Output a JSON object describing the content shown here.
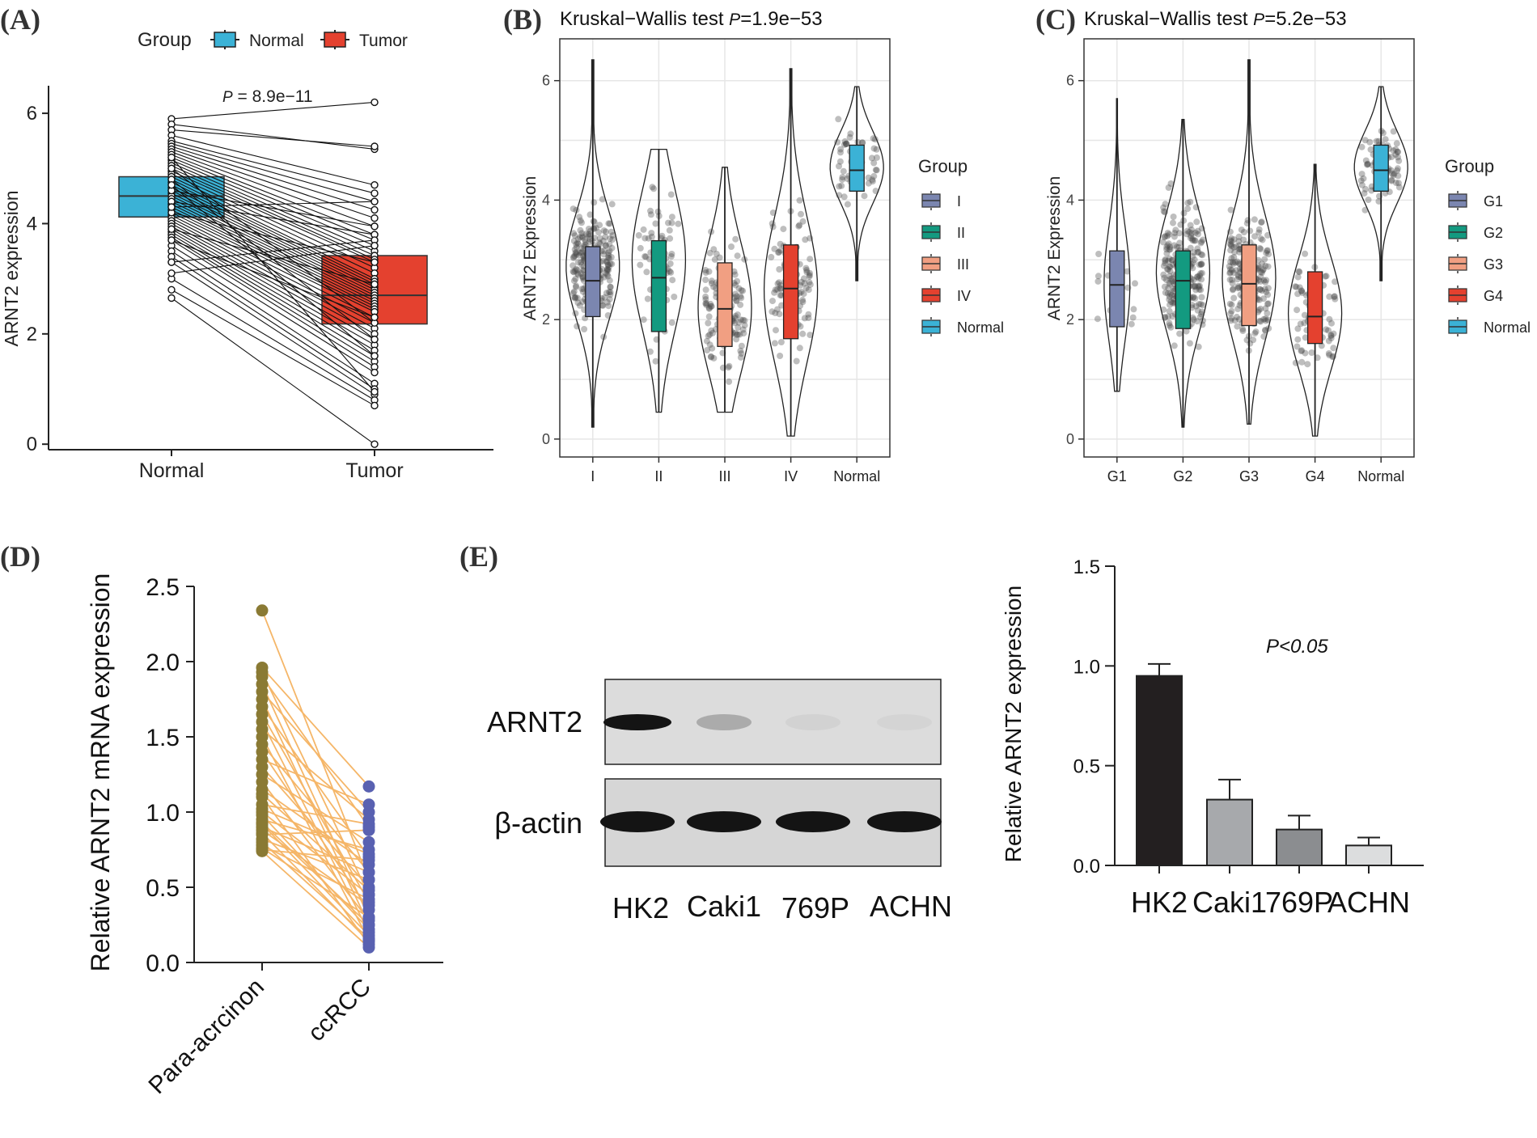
{
  "chart_data": [
    {
      "id": "A",
      "type": "box-paired",
      "panel_label": "(A)",
      "legend_title": "Group",
      "legend": [
        "Normal",
        "Tumor"
      ],
      "colors": {
        "Normal": "#3bb2d6",
        "Tumor": "#e4412f"
      },
      "p_prefix": "P",
      "p_value": " = 8.9e−11",
      "ylabel": "ARNT2 expression",
      "categories": [
        "Normal",
        "Tumor"
      ],
      "yticks": [
        "0",
        "2",
        "4",
        "6"
      ],
      "ylim": [
        -0.1,
        6.5
      ],
      "boxes": [
        {
          "group": "Normal",
          "q1": 4.12,
          "median": 4.5,
          "q3": 4.85
        },
        {
          "group": "Tumor",
          "q1": 2.18,
          "median": 2.7,
          "q3": 3.42
        }
      ],
      "pairs": [
        [
          5.9,
          6.2
        ],
        [
          5.8,
          5.35
        ],
        [
          5.7,
          5.4
        ],
        [
          5.6,
          4.7
        ],
        [
          5.5,
          4.55
        ],
        [
          5.45,
          4.4
        ],
        [
          5.4,
          4.25
        ],
        [
          5.35,
          4.1
        ],
        [
          5.3,
          3.95
        ],
        [
          5.25,
          3.8
        ],
        [
          5.2,
          3.7
        ],
        [
          5.15,
          3.6
        ],
        [
          5.1,
          3.5
        ],
        [
          5.05,
          3.42
        ],
        [
          5.0,
          3.35
        ],
        [
          4.95,
          3.3
        ],
        [
          4.9,
          3.2
        ],
        [
          4.85,
          3.1
        ],
        [
          4.8,
          3.0
        ],
        [
          4.75,
          2.95
        ],
        [
          4.7,
          2.9
        ],
        [
          4.65,
          2.85
        ],
        [
          4.6,
          2.8
        ],
        [
          4.55,
          2.75
        ],
        [
          4.5,
          2.7
        ],
        [
          4.45,
          2.65
        ],
        [
          4.4,
          2.6
        ],
        [
          4.35,
          2.55
        ],
        [
          4.3,
          2.5
        ],
        [
          4.25,
          2.45
        ],
        [
          4.2,
          2.4
        ],
        [
          4.15,
          2.3
        ],
        [
          4.1,
          2.2
        ],
        [
          4.05,
          2.1
        ],
        [
          4.0,
          2.0
        ],
        [
          3.95,
          1.9
        ],
        [
          3.9,
          1.8
        ],
        [
          3.85,
          1.7
        ],
        [
          3.8,
          1.6
        ],
        [
          3.75,
          1.5
        ],
        [
          3.7,
          1.4
        ],
        [
          3.6,
          1.3
        ],
        [
          3.5,
          1.1
        ],
        [
          3.4,
          1.0
        ],
        [
          3.3,
          0.9
        ],
        [
          3.0,
          0.8
        ],
        [
          2.8,
          0.7
        ],
        [
          2.65,
          0.0
        ],
        [
          4.6,
          3.95
        ],
        [
          4.4,
          3.8
        ],
        [
          3.3,
          3.7
        ],
        [
          3.1,
          3.6
        ],
        [
          4.8,
          1.9
        ],
        [
          5.0,
          2.2
        ],
        [
          4.2,
          3.3
        ],
        [
          3.9,
          2.9
        ],
        [
          4.7,
          1.6
        ],
        [
          5.2,
          0.95
        ],
        [
          4.3,
          4.4
        ],
        [
          3.7,
          2.3
        ]
      ]
    },
    {
      "id": "B",
      "type": "violin-box",
      "panel_label": "(B)",
      "title_prefix": "Kruskal−Wallis test ",
      "p_prefix": "P",
      "p_value": "=1.9e−53",
      "ylabel": "ARNT2 Expression",
      "categories": [
        "I",
        "II",
        "III",
        "IV",
        "Normal"
      ],
      "yticks": [
        "0",
        "2",
        "4",
        "6"
      ],
      "ylim": [
        -0.3,
        6.7
      ],
      "legend_title": "Group",
      "legend": [
        "I",
        "II",
        "III",
        "IV",
        "Normal"
      ],
      "colors": [
        "#7b86b0",
        "#139a80",
        "#f19f82",
        "#e4412f",
        "#3bb2d6"
      ],
      "groups": [
        {
          "min": 0.2,
          "q1": 2.05,
          "median": 2.65,
          "q3": 3.22,
          "max": 6.35,
          "n": 230,
          "mode": 2.9
        },
        {
          "min": 0.45,
          "q1": 1.8,
          "median": 2.7,
          "q3": 3.32,
          "max": 4.85,
          "n": 70,
          "mode": 3.0
        },
        {
          "min": 0.45,
          "q1": 1.55,
          "median": 2.18,
          "q3": 2.95,
          "max": 4.55,
          "n": 120,
          "mode": 2.2
        },
        {
          "min": 0.05,
          "q1": 1.68,
          "median": 2.52,
          "q3": 3.25,
          "max": 6.2,
          "n": 110,
          "mode": 2.5
        },
        {
          "min": 2.65,
          "q1": 4.15,
          "median": 4.5,
          "q3": 4.92,
          "max": 5.9,
          "n": 72,
          "mode": 4.55
        }
      ]
    },
    {
      "id": "C",
      "type": "violin-box",
      "panel_label": "(C)",
      "title_prefix": "Kruskal−Wallis test ",
      "p_prefix": "P",
      "p_value": "=5.2e−53",
      "ylabel": "ARNT2 Expression",
      "categories": [
        "G1",
        "G2",
        "G3",
        "G4",
        "Normal"
      ],
      "yticks": [
        "0",
        "2",
        "4",
        "6"
      ],
      "ylim": [
        -0.3,
        6.7
      ],
      "legend_title": "Group",
      "legend": [
        "G1",
        "G2",
        "G3",
        "G4",
        "Normal"
      ],
      "colors": [
        "#7b86b0",
        "#139a80",
        "#f19f82",
        "#e4412f",
        "#3bb2d6"
      ],
      "groups": [
        {
          "min": 0.8,
          "q1": 1.88,
          "median": 2.58,
          "q3": 3.15,
          "max": 5.7,
          "n": 14,
          "mode": 2.6
        },
        {
          "min": 0.2,
          "q1": 1.85,
          "median": 2.65,
          "q3": 3.15,
          "max": 5.35,
          "n": 230,
          "mode": 2.8
        },
        {
          "min": 0.25,
          "q1": 1.9,
          "median": 2.6,
          "q3": 3.25,
          "max": 6.35,
          "n": 200,
          "mode": 2.7
        },
        {
          "min": 0.05,
          "q1": 1.6,
          "median": 2.05,
          "q3": 2.8,
          "max": 4.6,
          "n": 70,
          "mode": 2.1
        },
        {
          "min": 2.65,
          "q1": 4.15,
          "median": 4.5,
          "q3": 4.92,
          "max": 5.9,
          "n": 72,
          "mode": 4.55
        }
      ]
    },
    {
      "id": "D",
      "type": "paired-dots",
      "panel_label": "(D)",
      "ylabel": "Relative ARNT2 mRNA expression",
      "categories": [
        "Para-acrcinon",
        "ccRCC"
      ],
      "yticks": [
        "0.0",
        "0.5",
        "1.0",
        "1.5",
        "2.0",
        "2.5"
      ],
      "ylim": [
        0,
        2.5
      ],
      "colors": {
        "left": "#8a7a34",
        "right": "#5961b1",
        "line": "#f5b668"
      },
      "left": [
        2.34,
        1.96,
        1.93,
        1.9,
        1.85,
        1.8,
        1.75,
        1.7,
        1.65,
        1.6,
        1.55,
        1.5,
        1.45,
        1.4,
        1.35,
        1.3,
        1.25,
        1.2,
        1.15,
        1.1,
        1.05,
        1.0,
        0.98,
        0.95,
        0.92,
        0.9,
        0.88,
        0.85,
        0.82,
        0.8,
        0.78,
        0.76,
        0.75,
        0.74,
        1.12,
        1.02,
        0.93,
        0.86
      ],
      "right": [
        0.55,
        1.17,
        0.45,
        0.9,
        0.3,
        1.0,
        0.25,
        0.7,
        0.4,
        0.2,
        0.95,
        0.15,
        0.6,
        0.35,
        1.05,
        0.5,
        0.8,
        0.28,
        0.65,
        0.12,
        0.92,
        0.45,
        0.22,
        0.75,
        0.18,
        0.6,
        0.38,
        0.88,
        0.55,
        0.16,
        0.42,
        0.3,
        0.68,
        0.1,
        0.48,
        0.72,
        0.25,
        0.14
      ]
    },
    {
      "id": "E-blot",
      "type": "western-blot",
      "panel_label": "(E)",
      "rows": [
        {
          "label": "ARNT2",
          "intensities": [
            1.0,
            0.35,
            0.06,
            0.05
          ]
        },
        {
          "label": "β-actin",
          "intensities": [
            1.0,
            1.0,
            1.0,
            1.0
          ]
        }
      ],
      "lanes": [
        "HK2",
        "Caki1",
        "769P",
        "ACHN"
      ]
    },
    {
      "id": "E-bar",
      "type": "bar",
      "ylabel": "Relative ARNT2 expression",
      "annotation": "P<0.05",
      "categories": [
        "HK2",
        "Caki1",
        "769P",
        "ACHN"
      ],
      "values": [
        0.95,
        0.33,
        0.18,
        0.1
      ],
      "errors": [
        0.06,
        0.1,
        0.07,
        0.04
      ],
      "colors": [
        "#231f20",
        "#a7a9ac",
        "#8b8d90",
        "#dcddde"
      ],
      "yticks": [
        "0.0",
        "0.5",
        "1.0",
        "1.5"
      ],
      "ylim": [
        0,
        1.5
      ]
    }
  ]
}
